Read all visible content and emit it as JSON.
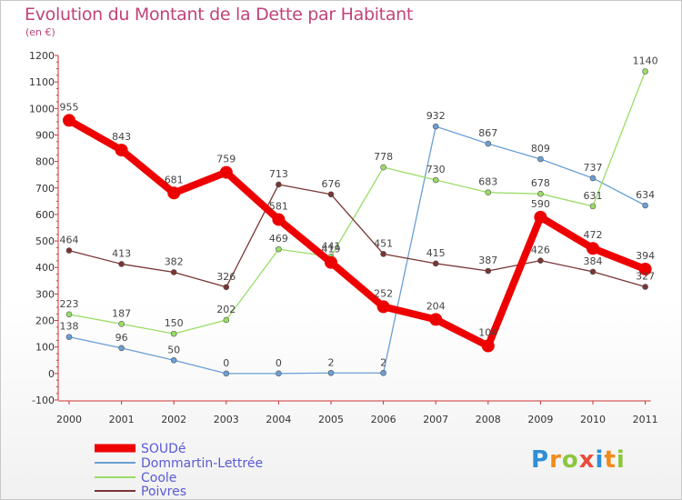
{
  "chart_data": {
    "type": "line",
    "title": "Evolution du Montant de la Dette par Habitant",
    "subtitle": "(en €)",
    "x": [
      "2000",
      "2001",
      "2002",
      "2003",
      "2004",
      "2005",
      "2006",
      "2007",
      "2008",
      "2009",
      "2010",
      "2011"
    ],
    "ylim": [
      -100,
      1200
    ],
    "yticks": [
      -100,
      0,
      100,
      200,
      300,
      400,
      500,
      600,
      700,
      800,
      900,
      1000,
      1100,
      1200
    ],
    "grid": false,
    "legend_position": "bottom-left",
    "series": [
      {
        "name": "SOUDé",
        "color": "#ee0000",
        "width": 8,
        "marker": 7,
        "values": [
          955,
          843,
          681,
          759,
          581,
          419,
          252,
          204,
          104,
          590,
          472,
          394
        ]
      },
      {
        "name": "Dommartin-Lettrée",
        "color": "#6a9fd4",
        "width": 1.3,
        "marker": 3,
        "values": [
          138,
          96,
          50,
          0,
          0,
          2,
          2,
          932,
          867,
          809,
          737,
          634
        ]
      },
      {
        "name": "Coole",
        "color": "#99dd66",
        "width": 1.3,
        "marker": 3,
        "values": [
          223,
          187,
          150,
          202,
          469,
          441,
          778,
          730,
          683,
          678,
          631,
          1140
        ]
      },
      {
        "name": "Poivres",
        "color": "#7a3434",
        "width": 1.3,
        "marker": 3,
        "values": [
          464,
          413,
          382,
          326,
          713,
          676,
          451,
          415,
          387,
          426,
          384,
          327
        ]
      }
    ]
  },
  "logo": {
    "p": "P",
    "r": "r",
    "o": "o",
    "x": "x",
    "i": "i",
    "t": "t",
    "i2": "i"
  }
}
